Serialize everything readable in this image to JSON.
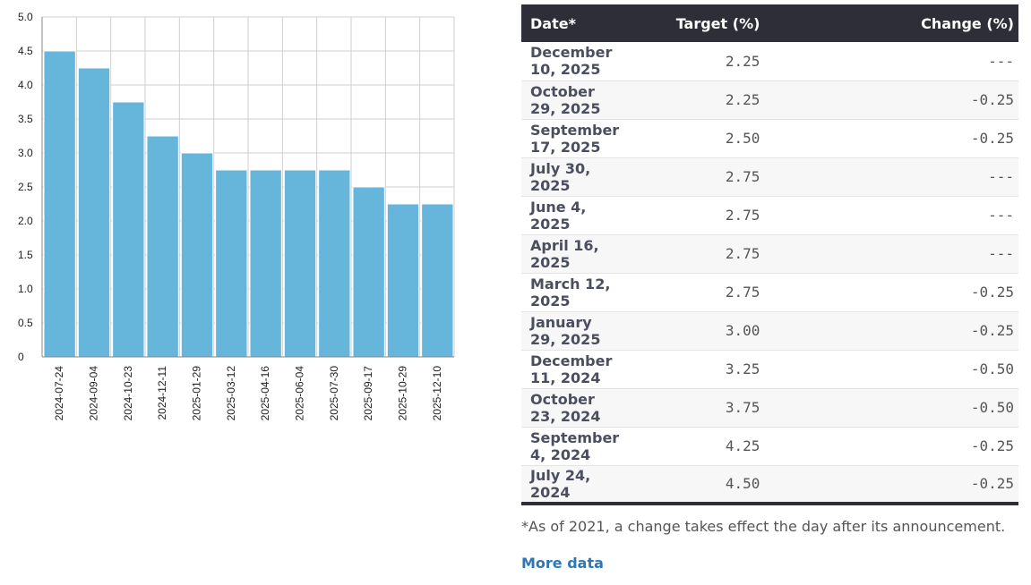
{
  "chart_data": {
    "type": "bar",
    "categories": [
      "2024-07-24",
      "2024-09-04",
      "2024-10-23",
      "2024-12-11",
      "2025-01-29",
      "2025-03-12",
      "2025-04-16",
      "2025-06-04",
      "2025-07-30",
      "2025-09-17",
      "2025-10-29",
      "2025-12-10"
    ],
    "values": [
      4.5,
      4.25,
      3.75,
      3.25,
      3.0,
      2.75,
      2.75,
      2.75,
      2.75,
      2.5,
      2.25,
      2.25
    ],
    "y_ticks": [
      "0",
      "0.5",
      "1.0",
      "1.5",
      "2.0",
      "2.5",
      "3.0",
      "3.5",
      "4.0",
      "4.5",
      "5.0"
    ],
    "ylim": [
      0,
      5.0
    ],
    "grid": true,
    "colors": {
      "bar": "#66b5db"
    }
  },
  "table": {
    "headers": {
      "date": "Date*",
      "target": "Target (%)",
      "change": "Change (%)"
    },
    "rows": [
      {
        "date": "December 10, 2025",
        "target": "2.25",
        "change": "---"
      },
      {
        "date": "October 29, 2025",
        "target": "2.25",
        "change": "-0.25"
      },
      {
        "date": "September 17, 2025",
        "target": "2.50",
        "change": "-0.25"
      },
      {
        "date": "July 30, 2025",
        "target": "2.75",
        "change": "---"
      },
      {
        "date": "June 4, 2025",
        "target": "2.75",
        "change": "---"
      },
      {
        "date": "April 16, 2025",
        "target": "2.75",
        "change": "---"
      },
      {
        "date": "March 12, 2025",
        "target": "2.75",
        "change": "-0.25"
      },
      {
        "date": "January 29, 2025",
        "target": "3.00",
        "change": "-0.25"
      },
      {
        "date": "December 11, 2024",
        "target": "3.25",
        "change": "-0.50"
      },
      {
        "date": "October 23, 2024",
        "target": "3.75",
        "change": "-0.50"
      },
      {
        "date": "September 4, 2024",
        "target": "4.25",
        "change": "-0.25"
      },
      {
        "date": "July 24, 2024",
        "target": "4.50",
        "change": "-0.25"
      }
    ]
  },
  "footnote": "*As of 2021, a change takes effect the day after its announcement.",
  "more_data_label": "More data",
  "colors": {
    "header_bg": "#2e2e38",
    "link": "#2f77b4"
  }
}
